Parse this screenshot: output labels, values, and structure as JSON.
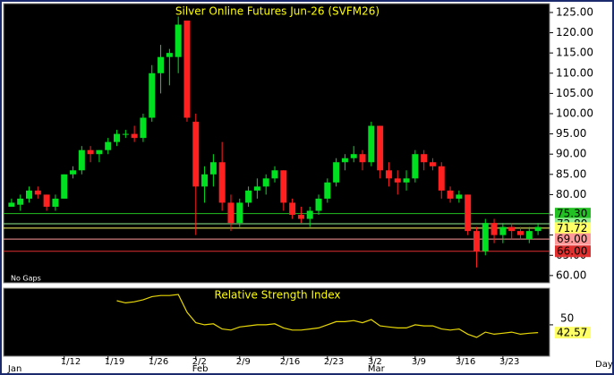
{
  "chart_data": [
    {
      "type": "candlestick",
      "title": "Silver Online Futures Jun-26 (SVFM26)",
      "note": "No Gaps",
      "categories": [
        null,
        null,
        null,
        null,
        null,
        null,
        "1/12",
        null,
        null,
        null,
        null,
        "1/19",
        null,
        null,
        null,
        null,
        "1/26",
        null,
        null,
        null,
        null,
        "2/2",
        null,
        null,
        null,
        null,
        "2/9",
        null,
        null,
        null,
        null,
        "2/16",
        null,
        null,
        null,
        null,
        "2/23",
        null,
        null,
        null,
        null,
        "3/2",
        null,
        null,
        null,
        null,
        "3/9",
        null,
        null,
        null,
        null,
        "3/16",
        null,
        null,
        null,
        null,
        "3/23",
        null,
        null,
        null,
        null
      ],
      "months": [
        "Jan",
        null,
        null,
        null,
        null,
        null,
        null,
        null,
        null,
        null,
        null,
        null,
        null,
        null,
        null,
        null,
        null,
        null,
        null,
        null,
        null,
        "Feb",
        null,
        null,
        null,
        null,
        null,
        null,
        null,
        null,
        null,
        null,
        null,
        null,
        null,
        null,
        null,
        null,
        null,
        null,
        null,
        "Mar",
        null,
        null,
        null,
        null,
        null,
        null,
        null,
        null,
        null,
        null,
        null,
        null,
        null,
        null,
        null,
        null,
        null,
        null,
        null
      ],
      "open": [
        77,
        77.5,
        79,
        81,
        80,
        77,
        79,
        85,
        86,
        91,
        90,
        91,
        93,
        95,
        95,
        94,
        99,
        110,
        114,
        114,
        123,
        98,
        82,
        85,
        88,
        78,
        73,
        78,
        81,
        82,
        84,
        86,
        78,
        75,
        74,
        76,
        79,
        83,
        88,
        89,
        90,
        88,
        97,
        86,
        84,
        83,
        84,
        90,
        88,
        87,
        81,
        79,
        80,
        71,
        66,
        73,
        70,
        72,
        71,
        69,
        71
      ],
      "high": [
        79,
        80,
        82,
        82,
        80,
        80,
        85,
        87,
        92,
        92,
        91,
        94,
        96,
        96,
        97,
        100,
        112,
        117,
        116,
        124,
        123,
        100,
        87,
        90,
        93,
        80,
        79,
        82,
        84,
        85,
        87,
        86,
        79,
        77,
        77,
        80,
        84,
        89,
        90,
        92,
        91,
        98,
        97,
        88,
        86,
        86,
        91,
        91,
        89,
        88,
        82,
        81,
        80,
        72,
        74,
        74,
        73,
        73,
        72,
        72,
        73
      ],
      "low": [
        77,
        76,
        78,
        79,
        76,
        76,
        79,
        84,
        85,
        88,
        88,
        90,
        92,
        94,
        93,
        93,
        98,
        105,
        107,
        110,
        98,
        70,
        78,
        82,
        76,
        71,
        72,
        77,
        79,
        80,
        83,
        76,
        74,
        73,
        72,
        75,
        78,
        82,
        86,
        88,
        86,
        87,
        84,
        82,
        80,
        81,
        83,
        86,
        86,
        79,
        78,
        78,
        70,
        62,
        65,
        68,
        68,
        69,
        69,
        68,
        70
      ],
      "close": [
        78,
        79,
        81,
        80,
        77,
        79,
        85,
        86,
        91,
        90,
        91,
        93,
        95,
        95,
        94,
        99,
        110,
        114,
        115,
        122,
        99,
        82,
        85,
        88,
        78,
        73,
        78,
        81,
        82,
        84,
        86,
        78,
        75,
        74,
        76,
        79,
        83,
        88,
        89,
        90,
        88,
        97,
        86,
        84,
        83,
        84,
        90,
        88,
        87,
        81,
        79,
        80,
        71,
        66,
        73,
        70,
        72,
        71,
        70,
        71,
        72
      ],
      "up_color": "#00e020",
      "down_color": "#ff2020",
      "ylim": [
        58.2,
        127.2
      ],
      "yticks": [
        {
          "value": 60,
          "label": "60.00"
        },
        {
          "value": 65,
          "label": "65.00"
        },
        {
          "value": 70,
          "label": "70.00"
        },
        {
          "value": 75,
          "label": "75.00"
        },
        {
          "value": 80,
          "label": "80.00"
        },
        {
          "value": 85,
          "label": "85.00"
        },
        {
          "value": 90,
          "label": "90.00"
        },
        {
          "value": 95,
          "label": "95.00"
        },
        {
          "value": 100,
          "label": "100.00"
        },
        {
          "value": 105,
          "label": "105.00"
        },
        {
          "value": 110,
          "label": "110.00"
        },
        {
          "value": 115,
          "label": "115.00"
        },
        {
          "value": 120,
          "label": "120.00"
        },
        {
          "value": 125,
          "label": "125.00"
        }
      ],
      "levels": [
        {
          "value": 75.3,
          "label": "75.30",
          "color": "#22c022"
        },
        {
          "value": 72.8,
          "label": "72.80",
          "color": "#90ee90"
        },
        {
          "value": 71.72,
          "label": "71.72",
          "color": "#ffff66"
        },
        {
          "value": 69,
          "label": "69.00",
          "color": "#ff9999"
        },
        {
          "value": 66,
          "label": "66.00",
          "color": "#e03030"
        }
      ],
      "grid": false
    },
    {
      "type": "line",
      "title": "Relative Strength Index",
      "values": [
        null,
        null,
        null,
        null,
        null,
        null,
        null,
        null,
        null,
        null,
        null,
        null,
        73,
        71,
        72,
        74,
        77,
        78,
        78,
        79,
        62,
        52,
        50,
        51,
        46,
        45,
        48,
        49,
        50,
        50,
        51,
        47,
        45,
        45,
        46,
        47,
        50,
        53,
        53,
        54,
        52,
        55,
        49,
        48,
        47,
        47,
        50,
        49,
        49,
        46,
        45,
        46,
        41,
        38,
        43,
        41,
        42,
        43,
        41,
        42,
        42.57
      ],
      "color": "#e8d800",
      "ylim": [
        20,
        85
      ],
      "yticks": [
        50
      ]
    }
  ],
  "period_label": "Day"
}
